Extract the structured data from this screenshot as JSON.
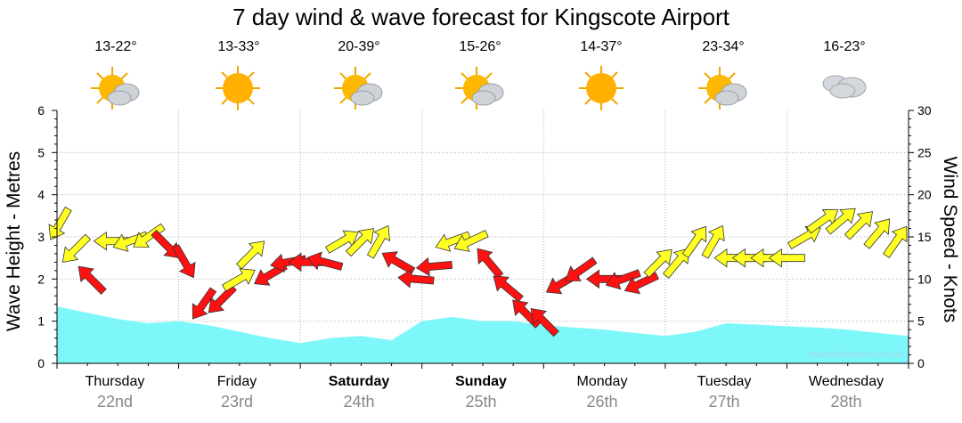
{
  "title": "7 day wind & wave forecast for Kingscote Airport",
  "days": [
    {
      "name": "Thursday",
      "date": "22nd",
      "temp": "13-22°",
      "icon": "partly-cloudy-icon",
      "bold": false
    },
    {
      "name": "Friday",
      "date": "23rd",
      "temp": "13-33°",
      "icon": "sunny-icon",
      "bold": false
    },
    {
      "name": "Saturday",
      "date": "24th",
      "temp": "20-39°",
      "icon": "partly-cloudy-icon",
      "bold": true
    },
    {
      "name": "Sunday",
      "date": "25th",
      "temp": "15-26°",
      "icon": "partly-cloudy-icon",
      "bold": true
    },
    {
      "name": "Monday",
      "date": "26th",
      "temp": "14-37°",
      "icon": "sunny-icon",
      "bold": false
    },
    {
      "name": "Tuesday",
      "date": "27th",
      "temp": "23-34°",
      "icon": "partly-cloudy-icon",
      "bold": false
    },
    {
      "name": "Wednesday",
      "date": "28th",
      "temp": "16-23°",
      "icon": "cloudy-icon",
      "bold": false
    }
  ],
  "credit": "www.seabreeze.com.au",
  "colors": {
    "wave": "#7ef7fa",
    "wind_light": "#ffff22",
    "wind_strong": "#ff1111",
    "grid": "#b0b0b0"
  },
  "chart_data": {
    "type": "area",
    "ylabel_left": "Wave Height - Metres",
    "ylabel_right": "Wind Speed - Knots",
    "ylim_left": [
      0,
      6
    ],
    "ylim_right": [
      0,
      30
    ],
    "yticks_left": [
      "0",
      "1",
      "2",
      "3",
      "4",
      "5",
      "6"
    ],
    "yticks_right": [
      "0",
      "5",
      "10",
      "15",
      "20",
      "25",
      "30"
    ],
    "grid": true,
    "series": [
      {
        "kind": "wave_height_area",
        "x": [
          0,
          0.25,
          0.5,
          0.75,
          1,
          1.25,
          1.5,
          1.75,
          2,
          2.25,
          2.5,
          2.75,
          3,
          3.25,
          3.5,
          3.75,
          4,
          4.25,
          4.5,
          4.75,
          5,
          5.25,
          5.5,
          5.75,
          6,
          6.25,
          6.5,
          6.75,
          7
        ],
        "values": [
          1.35,
          1.2,
          1.05,
          0.95,
          1.0,
          0.9,
          0.75,
          0.6,
          0.48,
          0.6,
          0.65,
          0.55,
          1.0,
          1.1,
          1.0,
          1.0,
          0.9,
          0.85,
          0.8,
          0.72,
          0.65,
          0.75,
          0.95,
          0.92,
          0.88,
          0.85,
          0.8,
          0.72,
          0.65
        ]
      },
      {
        "kind": "wind_arrows",
        "x": [
          0.02,
          0.15,
          0.28,
          0.45,
          0.6,
          0.75,
          0.9,
          1.05,
          1.2,
          1.35,
          1.5,
          1.6,
          1.75,
          1.9,
          2.05,
          2.2,
          2.35,
          2.5,
          2.65,
          2.8,
          2.95,
          3.1,
          3.25,
          3.4,
          3.55,
          3.7,
          3.85,
          4.0,
          4.15,
          4.3,
          4.5,
          4.65,
          4.8,
          4.95,
          5.1,
          5.25,
          5.4,
          5.55,
          5.7,
          5.85,
          6.0,
          6.15,
          6.3,
          6.45,
          6.6,
          6.75,
          6.9
        ],
        "values": [
          16.5,
          13.5,
          10,
          14.5,
          14.5,
          15,
          14,
          12,
          7,
          7.5,
          10,
          13,
          10.5,
          12,
          12,
          12,
          14.5,
          14.5,
          14.5,
          12,
          10,
          11.5,
          14.5,
          14.5,
          12,
          9,
          6,
          5,
          9.5,
          11,
          10,
          10,
          9.5,
          12,
          12,
          14.5,
          14.5,
          12.5,
          12.5,
          12.5,
          12.5,
          15,
          17,
          17,
          16.5,
          15.5,
          14.5
        ],
        "direction_deg": [
          210,
          225,
          315,
          270,
          250,
          235,
          135,
          150,
          215,
          225,
          60,
          45,
          240,
          260,
          270,
          285,
          60,
          45,
          30,
          300,
          275,
          265,
          250,
          245,
          320,
          310,
          315,
          315,
          240,
          235,
          270,
          250,
          245,
          45,
          40,
          35,
          30,
          270,
          270,
          270,
          270,
          60,
          55,
          50,
          45,
          40,
          35
        ],
        "strength": [
          "light",
          "light",
          "strong",
          "light",
          "light",
          "light",
          "strong",
          "strong",
          "strong",
          "strong",
          "light",
          "light",
          "strong",
          "strong",
          "strong",
          "strong",
          "light",
          "light",
          "light",
          "strong",
          "strong",
          "strong",
          "light",
          "light",
          "strong",
          "strong",
          "strong",
          "strong",
          "strong",
          "strong",
          "strong",
          "strong",
          "strong",
          "light",
          "light",
          "light",
          "light",
          "light",
          "light",
          "light",
          "light",
          "light",
          "light",
          "light",
          "light",
          "light",
          "light"
        ]
      }
    ]
  }
}
